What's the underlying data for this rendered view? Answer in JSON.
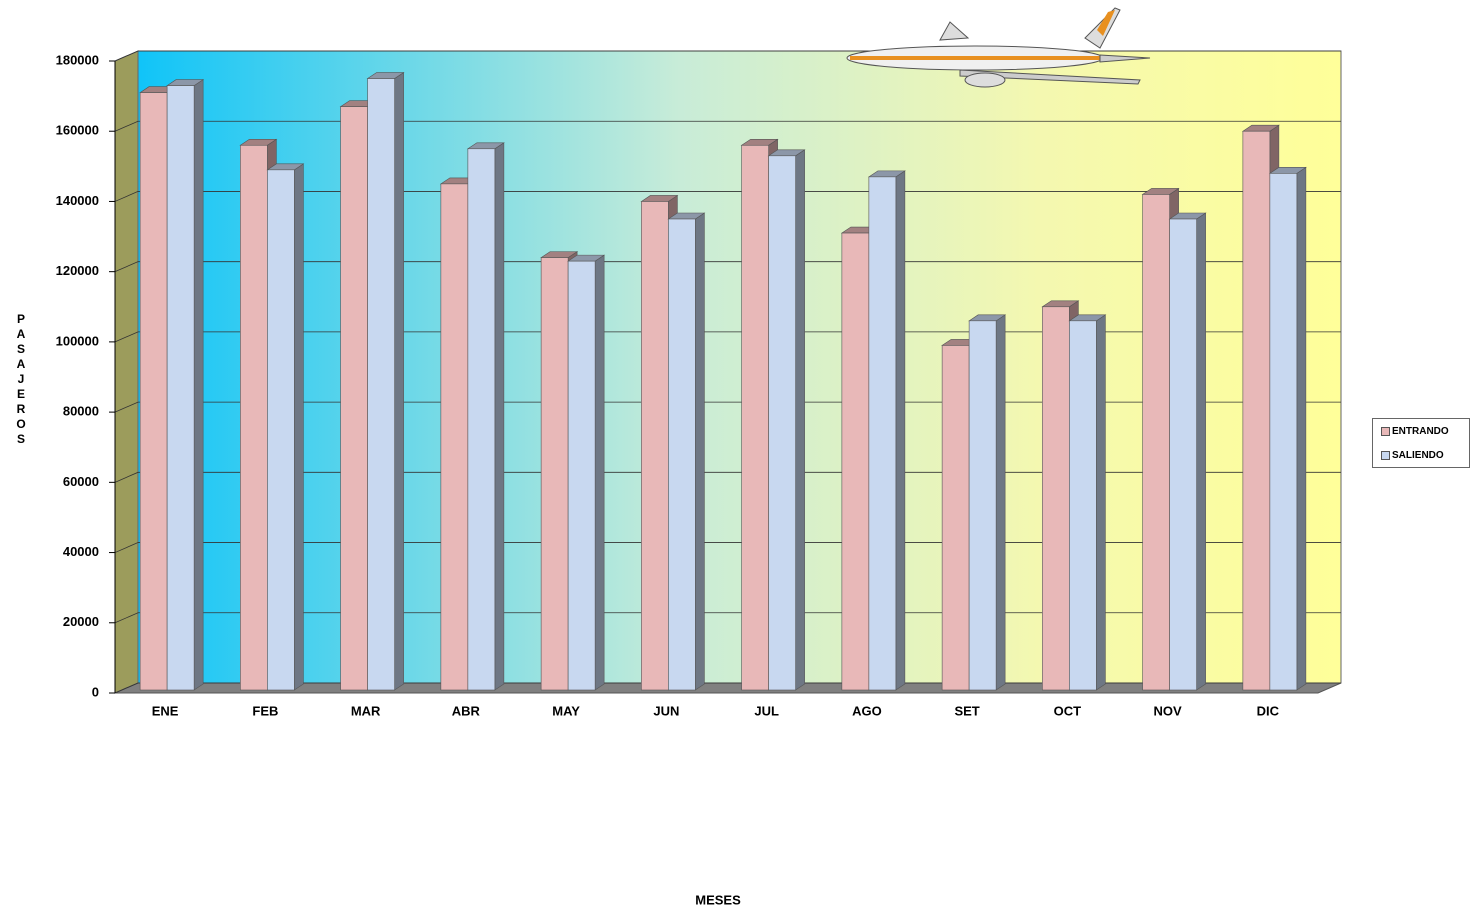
{
  "chart_data": {
    "type": "bar3d",
    "categories": [
      "ENE",
      "FEB",
      "MAR",
      "ABR",
      "MAY",
      "JUN",
      "JUL",
      "AGO",
      "SET",
      "OCT",
      "NOV",
      "DIC"
    ],
    "series": [
      {
        "name": "ENTRANDO",
        "color": "#e8b8b8",
        "values": [
          171000,
          156000,
          167000,
          145000,
          124000,
          140000,
          156000,
          131000,
          99000,
          110000,
          142000,
          160000
        ]
      },
      {
        "name": "SALIENDO",
        "color": "#c8d8f0",
        "values": [
          173000,
          149000,
          175000,
          155000,
          123000,
          135000,
          153000,
          147000,
          106000,
          106000,
          135000,
          148000
        ]
      }
    ],
    "ylim": [
      0,
      180000
    ],
    "yticks": [
      0,
      20000,
      40000,
      60000,
      80000,
      100000,
      120000,
      140000,
      160000,
      180000
    ],
    "x_label": "MESES",
    "y_label": "PASAJEROS",
    "grid": true
  }
}
